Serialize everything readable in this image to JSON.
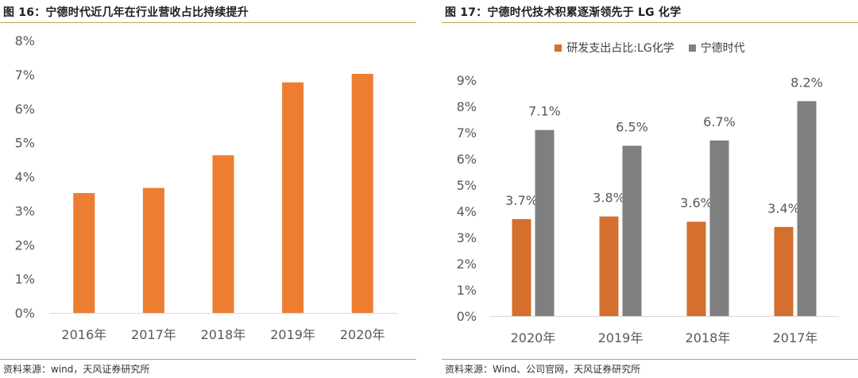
{
  "figures": {
    "left": {
      "title": "图 16：宁德时代近几年在行业营收占比持续提升",
      "source": "资料来源：wind，天风证券研究所"
    },
    "right": {
      "title": "图 17：宁德时代技术积累逐渐领先于 LG 化学",
      "source": "资料来源：Wind、公司官网，天风证券研究所"
    }
  },
  "colors": {
    "orange": "#ed7d31",
    "dark_orange": "#d46f2d",
    "gray": "#7f7f7f",
    "rule": "#c9a15a"
  },
  "chart_data": [
    {
      "type": "bar",
      "categories": [
        "2016年",
        "2017年",
        "2018年",
        "2019年",
        "2020年"
      ],
      "values": [
        3.52,
        3.67,
        4.63,
        6.77,
        7.02
      ],
      "ylim": [
        0,
        8
      ],
      "yticks": [
        "0%",
        "1%",
        "2%",
        "3%",
        "4%",
        "5%",
        "6%",
        "7%",
        "8%"
      ],
      "grid": false,
      "legend": "none",
      "color": "#ed7d31"
    },
    {
      "type": "bar",
      "categories": [
        "2020年",
        "2019年",
        "2018年",
        "2017年"
      ],
      "series": [
        {
          "name": "研发支出占比:LG化学",
          "values": [
            3.7,
            3.8,
            3.6,
            3.4
          ],
          "labels": [
            "3.7%",
            "3.8%",
            "3.6%",
            "3.4%"
          ],
          "color": "#d46f2d"
        },
        {
          "name": "宁德时代",
          "values": [
            7.1,
            6.5,
            6.7,
            8.2
          ],
          "labels": [
            "7.1%",
            "6.5%",
            "6.7%",
            "8.2%"
          ],
          "color": "#7f7f7f"
        }
      ],
      "ylim": [
        0,
        9
      ],
      "yticks": [
        "0%",
        "1%",
        "2%",
        "3%",
        "4%",
        "5%",
        "6%",
        "7%",
        "8%",
        "9%"
      ],
      "grid": false,
      "legend": "top-center"
    }
  ]
}
